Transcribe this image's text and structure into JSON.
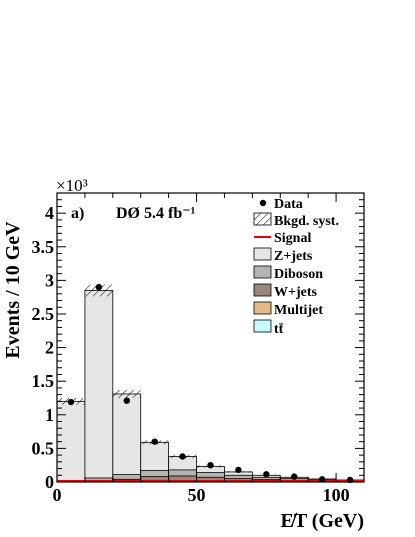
{
  "chart_data": {
    "type": "bar",
    "x_bins": [
      0,
      10,
      20,
      30,
      40,
      50,
      60,
      70,
      80,
      90,
      100,
      110
    ],
    "series": [
      {
        "name": "Z+jets",
        "values": [
          1180,
          2790,
          1200,
          420,
          200,
          90,
          50,
          30,
          20,
          15,
          10
        ]
      },
      {
        "name": "Diboson",
        "values": [
          20,
          40,
          70,
          90,
          90,
          70,
          50,
          35,
          25,
          15,
          10
        ]
      },
      {
        "name": "W+jets",
        "values": [
          0,
          20,
          40,
          80,
          90,
          70,
          50,
          35,
          25,
          15,
          10
        ]
      },
      {
        "name": "Multijet",
        "values": [
          0,
          0,
          0,
          0,
          0,
          0,
          0,
          0,
          0,
          0,
          0
        ]
      },
      {
        "name": "tt̄",
        "values": [
          0,
          0,
          0,
          0,
          0,
          0,
          0,
          0,
          0,
          0,
          0
        ]
      }
    ],
    "bkgd_syst_uncertainty": [
      50,
      90,
      60,
      30,
      25,
      15,
      10,
      8,
      6,
      5,
      4
    ],
    "data": {
      "name": "Data",
      "x": [
        5,
        15,
        25,
        35,
        45,
        55,
        65,
        75,
        85,
        95,
        105
      ],
      "y": [
        1190,
        2900,
        1210,
        600,
        380,
        250,
        180,
        115,
        80,
        40,
        30
      ]
    },
    "signal": {
      "name": "Signal",
      "color": "#e00000",
      "value": 0
    },
    "legend_labels": {
      "data": "Data",
      "syst": "Bkgd. syst.",
      "signal": "Signal",
      "zjets": "Z+jets",
      "diboson": "Diboson",
      "wjets": "W+jets",
      "multijet": "Multijet",
      "ttbar": "tt̄"
    },
    "colors": {
      "zjets": "#e6e6e6",
      "diboson": "#b4b4b4",
      "wjets": "#978877",
      "multijet": "#e2bb86",
      "ttbar": "#c5fbff",
      "signal": "#e00000"
    },
    "ylabel": "Events / 10 GeV",
    "xlabel": "E̸T (GeV)",
    "y_multiplier": "×10³",
    "panel_label": "a)",
    "experiment_label": "DØ 5.4 fb⁻¹",
    "xlim": [
      0,
      110
    ],
    "ylim": [
      0,
      4300
    ],
    "x_ticks": [
      0,
      50,
      100
    ],
    "x_tick_labels": [
      "0",
      "50",
      "100"
    ],
    "y_ticks": [
      0,
      500,
      1000,
      1500,
      2000,
      2500,
      3000,
      3500,
      4000
    ],
    "y_tick_labels": [
      "0",
      "0.5",
      "1",
      "1.5",
      "2",
      "2.5",
      "3",
      "3.5",
      "4"
    ],
    "legend_position": "top-right",
    "grid": false
  }
}
